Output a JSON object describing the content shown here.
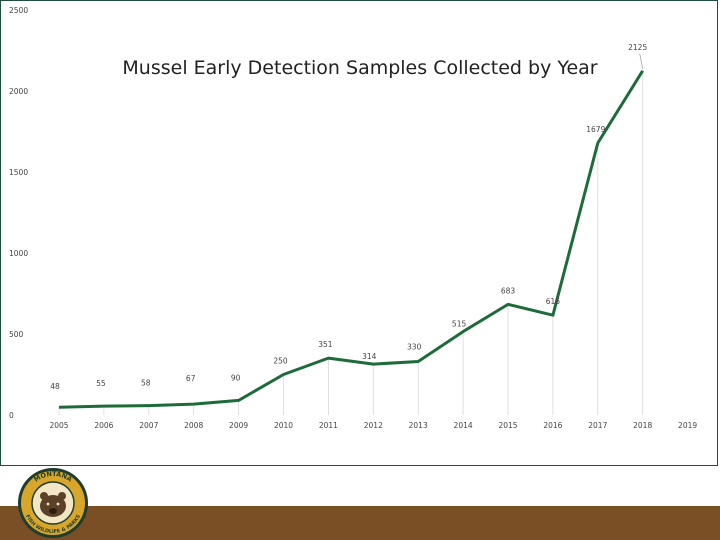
{
  "logo": {
    "text_top": "MONTANA",
    "text_bottom": "FISH WILDLIFE & PARKS",
    "colors": {
      "ring": "#d9a62c",
      "border": "#1f3d2b",
      "bear": "#5b4128"
    }
  },
  "colors": {
    "line": "#1e6b3a",
    "band": "#7a4f26",
    "frame": "#1f4e3d"
  },
  "chart_data": {
    "type": "line",
    "title": "Mussel Early Detection Samples Collected by Year",
    "xlabel": "",
    "ylabel": "",
    "categories": [
      "2005",
      "2006",
      "2007",
      "2008",
      "2009",
      "2010",
      "2011",
      "2012",
      "2013",
      "2014",
      "2015",
      "2016",
      "2017",
      "2018",
      "2019"
    ],
    "values": [
      48,
      55,
      58,
      67,
      90,
      250,
      351,
      314,
      330,
      515,
      683,
      616,
      1679,
      2125,
      null
    ],
    "data_labels": [
      "48",
      "55",
      "58",
      "67",
      "90",
      "250",
      "351",
      "314",
      "330",
      "515",
      "683",
      "616",
      "1679",
      "2125",
      ""
    ],
    "yticks": [
      "0",
      "500",
      "1000",
      "1500",
      "2000",
      "2500"
    ],
    "ylim": [
      0,
      2500
    ],
    "grid": "vertical drop lines",
    "legend": "none"
  }
}
